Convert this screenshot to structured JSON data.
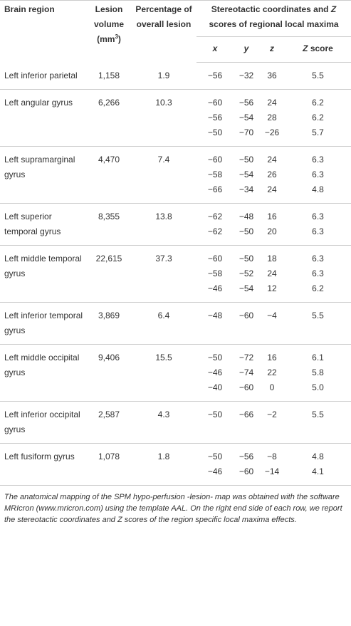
{
  "header": {
    "region": "Brain region",
    "volume": {
      "text": "Lesion volume (mm",
      "sup": "3",
      "close": ")"
    },
    "percentage": "Percentage of overall lesion",
    "coords": {
      "before": "Stereotactic coordinates and",
      "z": "Z",
      "after": "scores of regional local maxima"
    }
  },
  "subheader": {
    "x": "x",
    "y": "y",
    "z": "z",
    "score_z": "Z",
    "score_rest": "score"
  },
  "rows": [
    {
      "region": "Left inferior parietal",
      "volume": "1,158",
      "percentage": "1.9",
      "maxima": [
        [
          "−56",
          "−32",
          "36",
          "5.5"
        ]
      ]
    },
    {
      "region": "Left angular gyrus",
      "volume": "6,266",
      "percentage": "10.3",
      "maxima": [
        [
          "−60",
          "−56",
          "24",
          "6.2"
        ],
        [
          "−56",
          "−54",
          "28",
          "6.2"
        ],
        [
          "−50",
          "−70",
          "−26",
          "5.7"
        ]
      ]
    },
    {
      "region": "Left supramarginal gyrus",
      "volume": "4,470",
      "percentage": "7.4",
      "maxima": [
        [
          "−60",
          "−50",
          "24",
          "6.3"
        ],
        [
          "−58",
          "−54",
          "26",
          "6.3"
        ],
        [
          "−66",
          "−34",
          "24",
          "4.8"
        ]
      ]
    },
    {
      "region": "Left superior temporal gyrus",
      "volume": "8,355",
      "percentage": "13.8",
      "maxima": [
        [
          "−62",
          "−48",
          "16",
          "6.3"
        ],
        [
          "−62",
          "−50",
          "20",
          "6.3"
        ]
      ]
    },
    {
      "region": "Left middle temporal gyrus",
      "volume": "22,615",
      "percentage": "37.3",
      "maxima": [
        [
          "−60",
          "−50",
          "18",
          "6.3"
        ],
        [
          "−58",
          "−52",
          "24",
          "6.3"
        ],
        [
          "−46",
          "−54",
          "12",
          "6.2"
        ]
      ]
    },
    {
      "region": "Left inferior temporal gyrus",
      "volume": "3,869",
      "percentage": "6.4",
      "maxima": [
        [
          "−48",
          "−60",
          "−4",
          "5.5"
        ]
      ]
    },
    {
      "region": "Left middle occipital gyrus",
      "volume": "9,406",
      "percentage": "15.5",
      "maxima": [
        [
          "−50",
          "−72",
          "16",
          "6.1"
        ],
        [
          "−46",
          "−74",
          "22",
          "5.8"
        ],
        [
          "−40",
          "−60",
          "0",
          "5.0"
        ]
      ]
    },
    {
      "region": "Left inferior occipital gyrus",
      "volume": "2,587",
      "percentage": "4.3",
      "maxima": [
        [
          "−50",
          "−66",
          "−2",
          "5.5"
        ]
      ]
    },
    {
      "region": "Left fusiform gyrus",
      "volume": "1,078",
      "percentage": "1.8",
      "maxima": [
        [
          "−50",
          "−56",
          "−8",
          "4.8"
        ],
        [
          "−46",
          "−60",
          "−14",
          "4.1"
        ]
      ]
    }
  ],
  "footnote": "The anatomical mapping of the SPM hypo-perfusion -lesion- map was obtained with the software MRIcron (www.mricron.com) using the template AAL. On the right end side of each row, we report the stereotactic coordinates and Z scores of the region specific local maxima effects."
}
